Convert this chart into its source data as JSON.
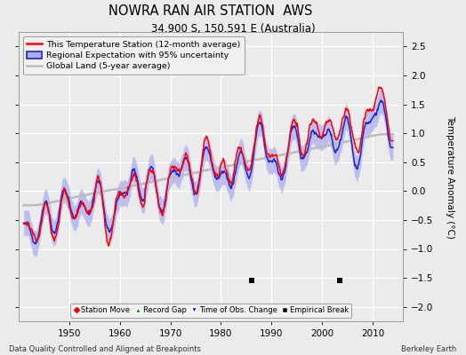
{
  "title": "NOWRA RAN AIR STATION  AWS",
  "subtitle": "34.900 S, 150.591 E (Australia)",
  "ylabel": "Temperature Anomaly (°C)",
  "xlabel_left": "Data Quality Controlled and Aligned at Breakpoints",
  "xlabel_right": "Berkeley Earth",
  "ylim": [
    -2.25,
    2.75
  ],
  "yticks": [
    -2,
    -1.5,
    -1,
    -0.5,
    0,
    0.5,
    1,
    1.5,
    2,
    2.5
  ],
  "xlim": [
    1940,
    2016
  ],
  "xticks": [
    1950,
    1960,
    1970,
    1980,
    1990,
    2000,
    2010
  ],
  "bg_color": "#ebebeb",
  "grid_color": "#ffffff",
  "station_color": "#ff0000",
  "regional_color": "#2222cc",
  "regional_fill_color": "#aaaaee",
  "global_color": "#bbbbbb",
  "empirical_breaks": [
    1986.0,
    2003.5
  ],
  "break_y": -1.55,
  "seed": 42
}
